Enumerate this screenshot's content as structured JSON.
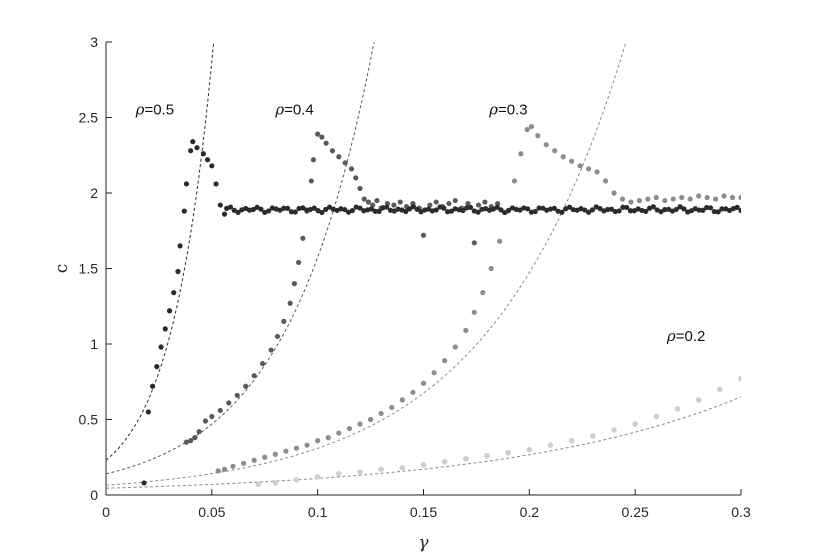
{
  "chart_data": {
    "type": "scatter",
    "title": "",
    "xlabel": "γ",
    "ylabel": "c",
    "xlim": [
      0,
      0.3
    ],
    "ylim": [
      0,
      3
    ],
    "grid": false,
    "legend": "none",
    "x_ticks": [
      0,
      0.05,
      0.1,
      0.15,
      0.2,
      0.25,
      0.3
    ],
    "x_tick_labels": [
      "0",
      "0.05",
      "0.1",
      "0.15",
      "0.2",
      "0.25",
      "0.3"
    ],
    "y_ticks": [
      0,
      0.5,
      1,
      1.5,
      2,
      2.5,
      3
    ],
    "y_tick_labels": [
      "0",
      "0.5",
      "1",
      "1.5",
      "2",
      "2.5",
      "3"
    ],
    "series": [
      {
        "label": "ρ=0.5",
        "label_pos": [
          0.014,
          2.52
        ],
        "color": "#2b2b2b",
        "dot_r": 2.6,
        "points": [
          [
            0.018,
            0.08
          ],
          [
            0.02,
            0.55
          ],
          [
            0.022,
            0.72
          ],
          [
            0.024,
            0.85
          ],
          [
            0.026,
            0.98
          ],
          [
            0.028,
            1.1
          ],
          [
            0.03,
            1.22
          ],
          [
            0.032,
            1.34
          ],
          [
            0.034,
            1.48
          ],
          [
            0.035,
            1.65
          ],
          [
            0.037,
            1.88
          ],
          [
            0.038,
            2.06
          ],
          [
            0.04,
            2.28
          ],
          [
            0.041,
            2.34
          ],
          [
            0.043,
            2.3
          ],
          [
            0.046,
            2.26
          ],
          [
            0.048,
            2.22
          ],
          [
            0.05,
            2.18
          ],
          [
            0.052,
            2.06
          ],
          [
            0.054,
            1.92
          ],
          [
            0.056,
            1.86
          ]
        ],
        "plateau": {
          "x_start": 0.057,
          "x_end": 0.3,
          "value": 1.89,
          "step": 0.0018
        },
        "dashed": {
          "a": 0.23,
          "k": 50.5
        }
      },
      {
        "label": "ρ=0.4",
        "label_pos": [
          0.08,
          2.52
        ],
        "color": "#5a5a5a",
        "dot_r": 2.6,
        "points": [
          [
            0.038,
            0.35
          ],
          [
            0.04,
            0.36
          ],
          [
            0.042,
            0.38
          ],
          [
            0.044,
            0.42
          ],
          [
            0.047,
            0.49
          ],
          [
            0.05,
            0.52
          ],
          [
            0.054,
            0.56
          ],
          [
            0.058,
            0.61
          ],
          [
            0.062,
            0.66
          ],
          [
            0.066,
            0.72
          ],
          [
            0.07,
            0.79
          ],
          [
            0.074,
            0.87
          ],
          [
            0.078,
            0.96
          ],
          [
            0.081,
            1.05
          ],
          [
            0.084,
            1.15
          ],
          [
            0.087,
            1.27
          ],
          [
            0.089,
            1.4
          ],
          [
            0.091,
            1.54
          ],
          [
            0.093,
            1.7
          ],
          [
            0.095,
            1.88
          ],
          [
            0.097,
            2.08
          ],
          [
            0.098,
            2.22
          ],
          [
            0.1,
            2.39
          ],
          [
            0.102,
            2.37
          ],
          [
            0.104,
            2.33
          ],
          [
            0.107,
            2.28
          ],
          [
            0.11,
            2.24
          ],
          [
            0.113,
            2.2
          ],
          [
            0.116,
            2.16
          ],
          [
            0.118,
            2.1
          ],
          [
            0.12,
            2.03
          ],
          [
            0.122,
            1.96
          ],
          [
            0.124,
            1.94
          ],
          [
            0.126,
            1.92
          ],
          [
            0.128,
            1.95
          ],
          [
            0.13,
            1.9
          ],
          [
            0.133,
            1.93
          ],
          [
            0.136,
            1.92
          ],
          [
            0.139,
            1.94
          ],
          [
            0.142,
            1.91
          ],
          [
            0.145,
            1.93
          ],
          [
            0.148,
            1.9
          ],
          [
            0.15,
            1.72
          ],
          [
            0.153,
            1.92
          ],
          [
            0.156,
            1.94
          ],
          [
            0.159,
            1.91
          ],
          [
            0.162,
            1.93
          ],
          [
            0.165,
            1.95
          ],
          [
            0.168,
            1.9
          ],
          [
            0.171,
            1.93
          ],
          [
            0.174,
            1.67
          ],
          [
            0.176,
            1.92
          ],
          [
            0.179,
            1.94
          ],
          [
            0.182,
            1.91
          ],
          [
            0.185,
            1.93
          ]
        ],
        "dashed": {
          "a": 0.14,
          "k": 24.2
        }
      },
      {
        "label": "ρ=0.3",
        "label_pos": [
          0.181,
          2.52
        ],
        "color": "#8c8c8c",
        "dot_r": 2.6,
        "points": [
          [
            0.053,
            0.16
          ],
          [
            0.056,
            0.17
          ],
          [
            0.06,
            0.19
          ],
          [
            0.065,
            0.21
          ],
          [
            0.07,
            0.23
          ],
          [
            0.075,
            0.25
          ],
          [
            0.08,
            0.27
          ],
          [
            0.085,
            0.29
          ],
          [
            0.09,
            0.31
          ],
          [
            0.095,
            0.33
          ],
          [
            0.1,
            0.36
          ],
          [
            0.105,
            0.38
          ],
          [
            0.11,
            0.41
          ],
          [
            0.115,
            0.44
          ],
          [
            0.12,
            0.47
          ],
          [
            0.125,
            0.5
          ],
          [
            0.13,
            0.54
          ],
          [
            0.135,
            0.58
          ],
          [
            0.14,
            0.63
          ],
          [
            0.145,
            0.68
          ],
          [
            0.15,
            0.74
          ],
          [
            0.155,
            0.81
          ],
          [
            0.16,
            0.89
          ],
          [
            0.165,
            0.98
          ],
          [
            0.17,
            1.09
          ],
          [
            0.174,
            1.21
          ],
          [
            0.178,
            1.34
          ],
          [
            0.182,
            1.5
          ],
          [
            0.186,
            1.68
          ],
          [
            0.19,
            1.88
          ],
          [
            0.193,
            2.08
          ],
          [
            0.196,
            2.26
          ],
          [
            0.199,
            2.42
          ],
          [
            0.201,
            2.44
          ],
          [
            0.204,
            2.38
          ],
          [
            0.208,
            2.32
          ],
          [
            0.212,
            2.28
          ],
          [
            0.216,
            2.24
          ],
          [
            0.22,
            2.21
          ],
          [
            0.224,
            2.18
          ],
          [
            0.228,
            2.16
          ],
          [
            0.232,
            2.14
          ],
          [
            0.236,
            2.08
          ],
          [
            0.24,
            2.0
          ],
          [
            0.244,
            1.96
          ],
          [
            0.248,
            1.94
          ],
          [
            0.252,
            1.95
          ],
          [
            0.256,
            1.96
          ],
          [
            0.26,
            1.97
          ],
          [
            0.264,
            1.95
          ],
          [
            0.268,
            1.96
          ],
          [
            0.272,
            1.97
          ],
          [
            0.276,
            1.96
          ],
          [
            0.28,
            1.98
          ],
          [
            0.284,
            1.97
          ],
          [
            0.288,
            1.96
          ],
          [
            0.292,
            1.98
          ],
          [
            0.296,
            1.97
          ],
          [
            0.3,
            1.97
          ]
        ],
        "dashed": {
          "a": 0.065,
          "k": 15.6
        }
      },
      {
        "label": "ρ=0.2",
        "label_pos": [
          0.265,
          1.02
        ],
        "color": "#cfcfcf",
        "dot_r": 2.8,
        "points": [
          [
            0.072,
            0.07
          ],
          [
            0.08,
            0.08
          ],
          [
            0.09,
            0.1
          ],
          [
            0.1,
            0.12
          ],
          [
            0.11,
            0.14
          ],
          [
            0.12,
            0.15
          ],
          [
            0.13,
            0.17
          ],
          [
            0.14,
            0.18
          ],
          [
            0.15,
            0.2
          ],
          [
            0.16,
            0.22
          ],
          [
            0.17,
            0.24
          ],
          [
            0.18,
            0.26
          ],
          [
            0.19,
            0.28
          ],
          [
            0.2,
            0.3
          ],
          [
            0.21,
            0.33
          ],
          [
            0.22,
            0.36
          ],
          [
            0.23,
            0.39
          ],
          [
            0.24,
            0.43
          ],
          [
            0.25,
            0.47
          ],
          [
            0.26,
            0.52
          ],
          [
            0.27,
            0.57
          ],
          [
            0.28,
            0.63
          ],
          [
            0.29,
            0.7
          ],
          [
            0.3,
            0.77
          ]
        ],
        "dashed": {
          "a": 0.045,
          "k": 8.9
        }
      }
    ]
  }
}
